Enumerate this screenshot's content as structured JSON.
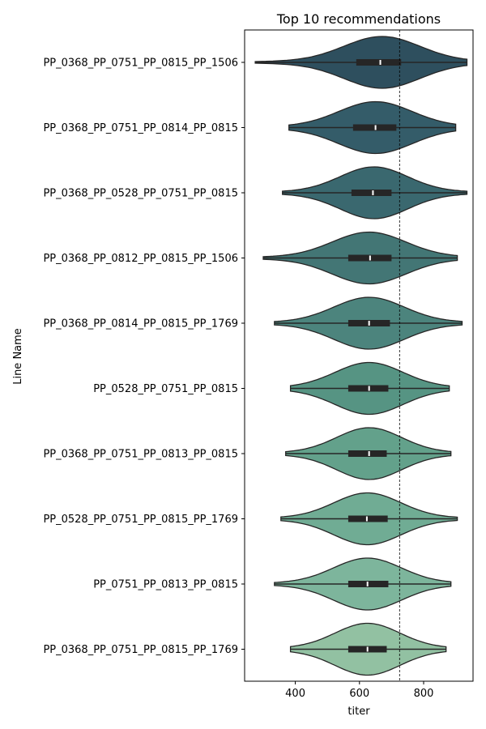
{
  "chart_data": {
    "type": "violin",
    "title": "Top 10 recommendations",
    "xlabel": "titer",
    "ylabel": "Line Name",
    "xlim": [
      242,
      954
    ],
    "xticks": [
      400,
      600,
      800
    ],
    "reference_line": 725,
    "grid": false,
    "legend": "none",
    "categories": [
      "PP_0368_PP_0751_PP_0815_PP_1506",
      "PP_0368_PP_0751_PP_0814_PP_0815",
      "PP_0368_PP_0528_PP_0751_PP_0815",
      "PP_0368_PP_0812_PP_0815_PP_1506",
      "PP_0368_PP_0814_PP_0815_PP_1769",
      "PP_0528_PP_0751_PP_0815",
      "PP_0368_PP_0751_PP_0813_PP_0815",
      "PP_0528_PP_0751_PP_0815_PP_1769",
      "PP_0751_PP_0813_PP_0815",
      "PP_0368_PP_0751_PP_0815_PP_1769"
    ],
    "series": [
      {
        "min": 275,
        "q1": 590,
        "median": 665,
        "q3": 730,
        "max": 935,
        "peak": 670,
        "color": "#2e4f5e"
      },
      {
        "min": 380,
        "q1": 580,
        "median": 650,
        "q3": 715,
        "max": 900,
        "peak": 650,
        "color": "#345c69"
      },
      {
        "min": 360,
        "q1": 575,
        "median": 642,
        "q3": 700,
        "max": 935,
        "peak": 645,
        "color": "#3a686f"
      },
      {
        "min": 300,
        "q1": 565,
        "median": 633,
        "q3": 700,
        "max": 905,
        "peak": 630,
        "color": "#437675"
      },
      {
        "min": 335,
        "q1": 565,
        "median": 630,
        "q3": 695,
        "max": 920,
        "peak": 630,
        "color": "#4c847d"
      },
      {
        "min": 385,
        "q1": 565,
        "median": 630,
        "q3": 690,
        "max": 880,
        "peak": 630,
        "color": "#569483"
      },
      {
        "min": 370,
        "q1": 565,
        "median": 630,
        "q3": 685,
        "max": 885,
        "peak": 630,
        "color": "#63a18b"
      },
      {
        "min": 355,
        "q1": 565,
        "median": 623,
        "q3": 688,
        "max": 905,
        "peak": 625,
        "color": "#70ac94"
      },
      {
        "min": 335,
        "q1": 565,
        "median": 625,
        "q3": 690,
        "max": 885,
        "peak": 625,
        "color": "#7db59c"
      },
      {
        "min": 385,
        "q1": 565,
        "median": 625,
        "q3": 685,
        "max": 870,
        "peak": 625,
        "color": "#92c1a2"
      }
    ]
  }
}
